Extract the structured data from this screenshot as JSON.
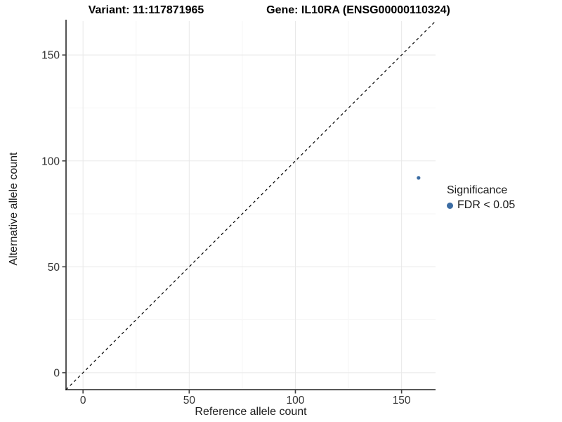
{
  "header": {
    "variant_title": "Variant: 11:117871965",
    "gene_title": "Gene: IL10RA (ENSG00000110324)"
  },
  "chart_data": {
    "type": "scatter",
    "title_left": "Variant: 11:117871965",
    "title_right": "Gene: IL10RA (ENSG00000110324)",
    "xlabel": "Reference allele count",
    "ylabel": "Alternative allele count",
    "xlim": [
      -8,
      166
    ],
    "ylim": [
      -8,
      166
    ],
    "x_ticks": [
      0,
      50,
      100,
      150
    ],
    "y_ticks": [
      0,
      50,
      100,
      150
    ],
    "x_minor_ticks": [
      25,
      75,
      125
    ],
    "y_minor_ticks": [
      25,
      75,
      125
    ],
    "grid": true,
    "identity_line": {
      "style": "dashed",
      "color": "#000000",
      "from": -8,
      "to": 166
    },
    "series": [
      {
        "name": "FDR < 0.05",
        "color": "#3b6ca3",
        "points": [
          {
            "x": 158,
            "y": 92
          }
        ]
      }
    ],
    "legend": {
      "title": "Significance",
      "position": "right",
      "entries": [
        {
          "label": "FDR < 0.05",
          "color": "#3b6ca3"
        }
      ]
    }
  },
  "colors": {
    "background": "#ffffff",
    "grid_major": "#e8e8e8",
    "grid_minor": "#f5f5f5",
    "axis_line": "#404040",
    "tick_label": "#333333",
    "point": "#3b6ca3"
  }
}
